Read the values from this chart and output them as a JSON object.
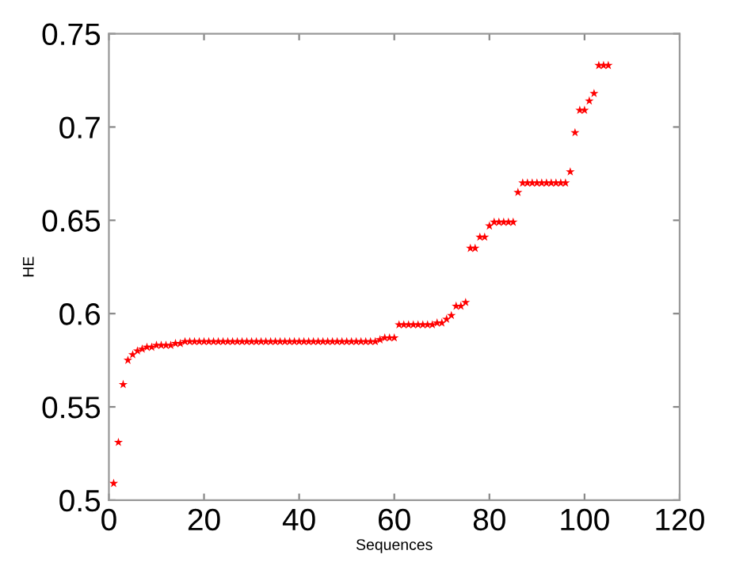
{
  "chart_data": {
    "type": "scatter",
    "xlabel": "Sequences",
    "ylabel": "HE",
    "x": [
      1,
      2,
      3,
      4,
      5,
      6,
      7,
      8,
      9,
      10,
      11,
      12,
      13,
      14,
      15,
      16,
      17,
      18,
      19,
      20,
      21,
      22,
      23,
      24,
      25,
      26,
      27,
      28,
      29,
      30,
      31,
      32,
      33,
      34,
      35,
      36,
      37,
      38,
      39,
      40,
      41,
      42,
      43,
      44,
      45,
      46,
      47,
      48,
      49,
      50,
      51,
      52,
      53,
      54,
      55,
      56,
      57,
      58,
      59,
      60,
      61,
      62,
      63,
      64,
      65,
      66,
      67,
      68,
      69,
      70,
      71,
      72,
      73,
      74,
      75,
      76,
      77,
      78,
      79,
      80,
      81,
      82,
      83,
      84,
      85,
      86,
      87,
      88,
      89,
      90,
      91,
      92,
      93,
      94,
      95,
      96,
      97,
      98,
      99,
      100,
      101,
      102,
      103,
      104,
      105
    ],
    "series": [
      {
        "color": "#ff0000",
        "values": [
          0.509,
          0.531,
          0.562,
          0.575,
          0.578,
          0.58,
          0.581,
          0.582,
          0.582,
          0.583,
          0.583,
          0.583,
          0.583,
          0.584,
          0.584,
          0.585,
          0.585,
          0.585,
          0.585,
          0.585,
          0.585,
          0.585,
          0.585,
          0.585,
          0.585,
          0.585,
          0.585,
          0.585,
          0.585,
          0.585,
          0.585,
          0.585,
          0.585,
          0.585,
          0.585,
          0.585,
          0.585,
          0.585,
          0.585,
          0.585,
          0.585,
          0.585,
          0.585,
          0.585,
          0.585,
          0.585,
          0.585,
          0.585,
          0.585,
          0.585,
          0.585,
          0.585,
          0.585,
          0.585,
          0.585,
          0.585,
          0.586,
          0.587,
          0.587,
          0.587,
          0.594,
          0.594,
          0.594,
          0.594,
          0.594,
          0.594,
          0.594,
          0.594,
          0.595,
          0.595,
          0.597,
          0.599,
          0.604,
          0.604,
          0.606,
          0.635,
          0.635,
          0.641,
          0.641,
          0.647,
          0.649,
          0.649,
          0.649,
          0.649,
          0.649,
          0.665,
          0.67,
          0.67,
          0.67,
          0.67,
          0.67,
          0.67,
          0.67,
          0.67,
          0.67,
          0.67,
          0.676,
          0.697,
          0.709,
          0.709,
          0.714,
          0.718,
          0.733,
          0.733,
          0.733
        ]
      }
    ],
    "marker": "star",
    "xlim": [
      0,
      120
    ],
    "ylim": [
      0.5,
      0.75
    ],
    "xticks": [
      0,
      20,
      40,
      60,
      80,
      100,
      120
    ],
    "yticks": [
      0.5,
      0.55,
      0.6,
      0.65,
      0.7,
      0.75
    ],
    "grid": false,
    "legend": false
  }
}
